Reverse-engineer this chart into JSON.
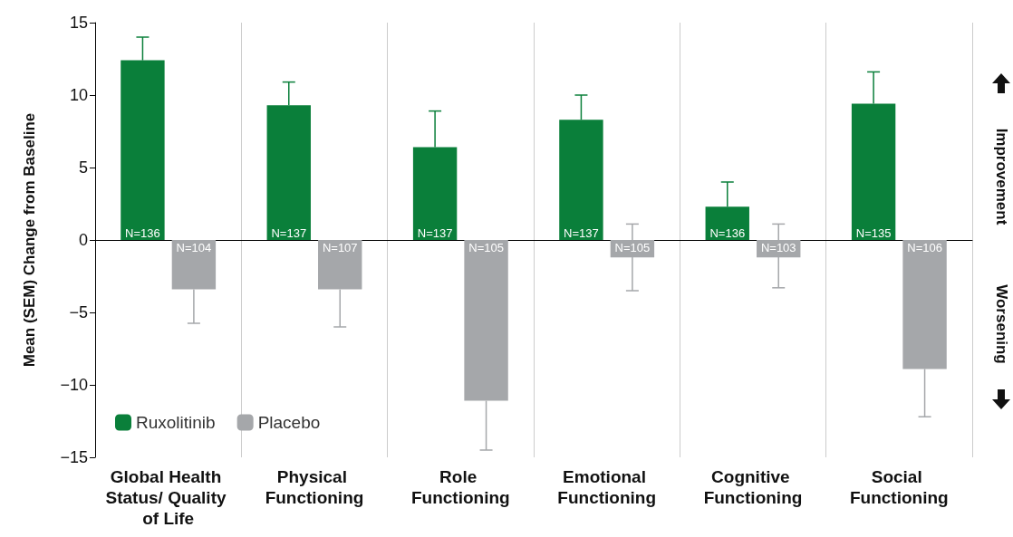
{
  "chart_data": {
    "type": "bar",
    "ylabel": "Mean (SEM) Change from Baseline",
    "categories": [
      "Global Health Status/ Quality of Life",
      "Physical Functioning",
      "Role Functioning",
      "Emotional Functioning",
      "Cognitive Functioning",
      "Social Functioning"
    ],
    "series": [
      {
        "name": "Ruxolitinib",
        "color": "#0a7f3a",
        "values": [
          12.4,
          9.3,
          6.4,
          8.3,
          2.3,
          9.4
        ],
        "errors": [
          [
            12.4,
            14.0
          ],
          [
            9.3,
            10.9
          ],
          [
            6.4,
            8.9
          ],
          [
            8.3,
            10.0
          ],
          [
            2.3,
            4.0
          ],
          [
            9.4,
            11.6
          ]
        ]
      },
      {
        "name": "Placebo",
        "color": "#a5a7aa",
        "values": [
          -3.4,
          -3.4,
          -11.1,
          -1.2,
          -1.2,
          -8.9
        ],
        "errors": [
          [
            -5.75,
            -3.4
          ],
          [
            -6.0,
            -3.4
          ],
          [
            -14.5,
            -11.1
          ],
          [
            -3.5,
            1.1
          ],
          [
            -3.3,
            1.1
          ],
          [
            -12.2,
            -8.9
          ]
        ]
      }
    ],
    "ylim": [
      -15,
      15
    ],
    "yticks": [
      {
        "value": -15,
        "label": "−15"
      },
      {
        "value": -10,
        "label": "−10"
      },
      {
        "value": -5,
        "label": "−5"
      },
      0,
      5,
      10,
      15
    ],
    "grid": "x",
    "legend": "bottom left",
    "annotations": [
      "Improvement",
      "Worsening",
      "N=136",
      "N=104",
      "N=137",
      "N=107",
      "N=137",
      "N=105",
      "N=137",
      "N=105",
      "N=136",
      "N=103",
      "N=135",
      "N=106"
    ]
  }
}
